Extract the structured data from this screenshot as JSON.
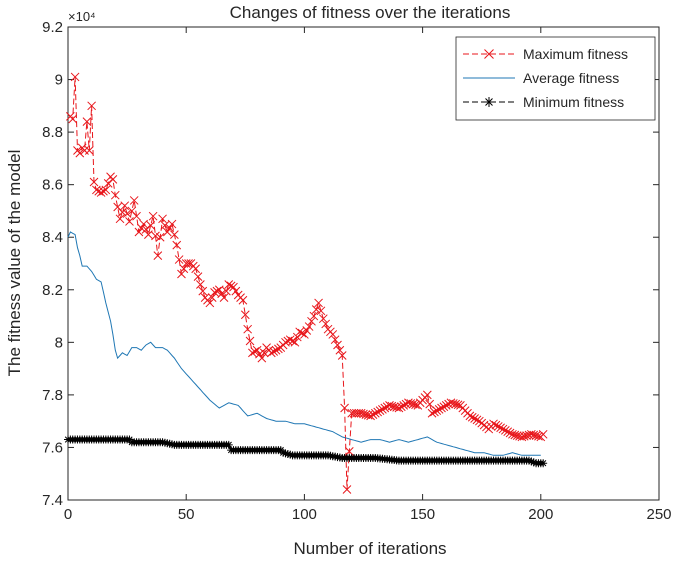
{
  "chart_data": {
    "type": "line",
    "title": "Changes of fitness over the iterations",
    "xlabel": "Number of iterations",
    "ylabel": "The fitness value of the model",
    "y_exponent_label": "×10⁴",
    "xlim": [
      0,
      250
    ],
    "ylim": [
      74000,
      92000
    ],
    "x_ticks": [
      0,
      50,
      100,
      150,
      200,
      250
    ],
    "y_ticks": [
      74000,
      76000,
      78000,
      80000,
      82000,
      84000,
      86000,
      88000,
      90000,
      92000
    ],
    "x_tick_labels": [
      "0",
      "50",
      "100",
      "150",
      "200",
      "250"
    ],
    "y_tick_labels": [
      "7.4",
      "7.6",
      "7.8",
      "8",
      "8.2",
      "8.4",
      "8.6",
      "8.8",
      "9",
      "9.2"
    ],
    "grid": false,
    "legend_position": "top-right",
    "series": [
      {
        "name": "Maximum fitness",
        "color": "#e8161b",
        "line_style": "dashed",
        "marker": "x",
        "keypoints": [
          [
            1,
            88600
          ],
          [
            2,
            88500
          ],
          [
            3,
            90100
          ],
          [
            4,
            87300
          ],
          [
            5,
            87200
          ],
          [
            6,
            87400
          ],
          [
            7,
            87300
          ],
          [
            8,
            88400
          ],
          [
            9,
            87300
          ],
          [
            10,
            89000
          ],
          [
            11,
            86100
          ],
          [
            12,
            85800
          ],
          [
            14,
            85700
          ],
          [
            16,
            85800
          ],
          [
            18,
            86300
          ],
          [
            19,
            86200
          ],
          [
            20,
            85600
          ],
          [
            22,
            84700
          ],
          [
            24,
            85200
          ],
          [
            26,
            84600
          ],
          [
            28,
            85400
          ],
          [
            30,
            84200
          ],
          [
            32,
            84500
          ],
          [
            34,
            84100
          ],
          [
            36,
            84800
          ],
          [
            38,
            83300
          ],
          [
            40,
            84700
          ],
          [
            42,
            84200
          ],
          [
            44,
            84500
          ],
          [
            46,
            83700
          ],
          [
            48,
            82600
          ],
          [
            50,
            83000
          ],
          [
            52,
            83000
          ],
          [
            54,
            82800
          ],
          [
            56,
            82200
          ],
          [
            58,
            81700
          ],
          [
            60,
            81500
          ],
          [
            62,
            81900
          ],
          [
            64,
            82000
          ],
          [
            66,
            81700
          ],
          [
            68,
            82200
          ],
          [
            70,
            82100
          ],
          [
            72,
            81800
          ],
          [
            74,
            81600
          ],
          [
            76,
            80500
          ],
          [
            78,
            79600
          ],
          [
            80,
            79700
          ],
          [
            82,
            79400
          ],
          [
            84,
            79800
          ],
          [
            86,
            79600
          ],
          [
            88,
            79700
          ],
          [
            90,
            79800
          ],
          [
            92,
            80000
          ],
          [
            94,
            80100
          ],
          [
            96,
            80000
          ],
          [
            98,
            80400
          ],
          [
            100,
            80300
          ],
          [
            102,
            80600
          ],
          [
            104,
            81000
          ],
          [
            106,
            81500
          ],
          [
            108,
            80900
          ],
          [
            110,
            80500
          ],
          [
            112,
            80300
          ],
          [
            114,
            79900
          ],
          [
            116,
            79500
          ],
          [
            117,
            77500
          ],
          [
            118,
            74400
          ],
          [
            120,
            77300
          ],
          [
            124,
            77300
          ],
          [
            128,
            77200
          ],
          [
            132,
            77400
          ],
          [
            136,
            77600
          ],
          [
            140,
            77500
          ],
          [
            144,
            77700
          ],
          [
            148,
            77600
          ],
          [
            152,
            78000
          ],
          [
            154,
            77300
          ],
          [
            158,
            77500
          ],
          [
            162,
            77700
          ],
          [
            166,
            77600
          ],
          [
            170,
            77200
          ],
          [
            174,
            77000
          ],
          [
            178,
            76700
          ],
          [
            180,
            76900
          ],
          [
            184,
            76700
          ],
          [
            188,
            76500
          ],
          [
            192,
            76400
          ],
          [
            196,
            76500
          ],
          [
            200,
            76400
          ],
          [
            201,
            76500
          ]
        ]
      },
      {
        "name": "Average fitness",
        "color": "#1f77b4",
        "line_style": "solid",
        "marker": "none",
        "keypoints": [
          [
            0,
            84000
          ],
          [
            1,
            84200
          ],
          [
            3,
            84100
          ],
          [
            4,
            83600
          ],
          [
            5,
            83300
          ],
          [
            6,
            82900
          ],
          [
            8,
            82900
          ],
          [
            10,
            82700
          ],
          [
            12,
            82400
          ],
          [
            14,
            82300
          ],
          [
            16,
            81500
          ],
          [
            18,
            80800
          ],
          [
            19,
            80300
          ],
          [
            20,
            79700
          ],
          [
            21,
            79400
          ],
          [
            23,
            79600
          ],
          [
            25,
            79500
          ],
          [
            27,
            79800
          ],
          [
            29,
            79800
          ],
          [
            31,
            79700
          ],
          [
            33,
            79900
          ],
          [
            35,
            80000
          ],
          [
            37,
            79800
          ],
          [
            40,
            79800
          ],
          [
            42,
            79700
          ],
          [
            45,
            79400
          ],
          [
            48,
            79000
          ],
          [
            52,
            78600
          ],
          [
            56,
            78200
          ],
          [
            60,
            77800
          ],
          [
            64,
            77500
          ],
          [
            68,
            77700
          ],
          [
            72,
            77600
          ],
          [
            76,
            77200
          ],
          [
            80,
            77300
          ],
          [
            84,
            77100
          ],
          [
            88,
            77000
          ],
          [
            92,
            77000
          ],
          [
            96,
            76900
          ],
          [
            100,
            76900
          ],
          [
            104,
            76800
          ],
          [
            108,
            76700
          ],
          [
            112,
            76600
          ],
          [
            116,
            76400
          ],
          [
            120,
            76300
          ],
          [
            124,
            76200
          ],
          [
            128,
            76300
          ],
          [
            132,
            76300
          ],
          [
            136,
            76200
          ],
          [
            140,
            76300
          ],
          [
            144,
            76200
          ],
          [
            148,
            76300
          ],
          [
            152,
            76400
          ],
          [
            156,
            76200
          ],
          [
            160,
            76100
          ],
          [
            164,
            76000
          ],
          [
            168,
            75900
          ],
          [
            172,
            75800
          ],
          [
            176,
            75800
          ],
          [
            180,
            75700
          ],
          [
            184,
            75700
          ],
          [
            188,
            75800
          ],
          [
            192,
            75700
          ],
          [
            196,
            75700
          ],
          [
            200,
            75700
          ]
        ]
      },
      {
        "name": "Minimum fitness",
        "color": "#000000",
        "line_style": "dashed",
        "marker": "*",
        "keypoints": [
          [
            0,
            76300
          ],
          [
            10,
            76300
          ],
          [
            20,
            76300
          ],
          [
            26,
            76300
          ],
          [
            27,
            76200
          ],
          [
            40,
            76200
          ],
          [
            45,
            76100
          ],
          [
            60,
            76100
          ],
          [
            68,
            76100
          ],
          [
            69,
            75900
          ],
          [
            90,
            75900
          ],
          [
            91,
            75800
          ],
          [
            95,
            75700
          ],
          [
            110,
            75700
          ],
          [
            116,
            75600
          ],
          [
            130,
            75600
          ],
          [
            140,
            75500
          ],
          [
            160,
            75500
          ],
          [
            180,
            75500
          ],
          [
            195,
            75500
          ],
          [
            198,
            75400
          ],
          [
            201,
            75400
          ]
        ]
      }
    ]
  }
}
